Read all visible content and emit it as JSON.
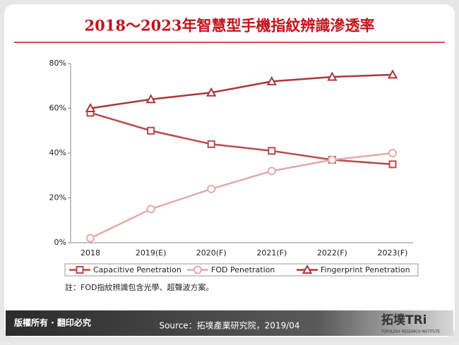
{
  "chart_data": {
    "type": "line",
    "title": "2018～2023年智慧型手機指紋辨識滲透率",
    "categories": [
      "2018",
      "2019(E)",
      "2020(F)",
      "2021(F)",
      "2022(F)",
      "2023(F)"
    ],
    "series": [
      {
        "name": "Capacitive Penetration",
        "color": "#b84a4c",
        "marker": "square",
        "values": [
          58,
          50,
          44,
          41,
          37,
          35
        ]
      },
      {
        "name": "FOD Penetration",
        "color": "#e2aaa9",
        "marker": "circle",
        "values": [
          2,
          15,
          24,
          32,
          37,
          40
        ]
      },
      {
        "name": "Fingerprint Penetration",
        "color": "#a8393d",
        "marker": "triangle",
        "values": [
          60,
          64,
          67,
          72,
          74,
          75
        ]
      }
    ],
    "ylim": [
      0,
      80
    ],
    "yticks": [
      {
        "value": 0,
        "label": "0%"
      },
      {
        "value": 20,
        "label": "20%"
      },
      {
        "value": 40,
        "label": "40%"
      },
      {
        "value": 60,
        "label": "60%"
      },
      {
        "value": 80,
        "label": "80%"
      }
    ],
    "grid": false,
    "legend": "bottom",
    "note": "註：FOD指紋辨識包含光學、超聲波方案。"
  },
  "footer": {
    "copyright": "版權所有 · 翻印必究",
    "source": "Source：拓墣產業研究院，2019/04",
    "logo": "拓墣TRi",
    "logo_sub": "TOPOLOGY RESEARCH INSTITUTE"
  }
}
